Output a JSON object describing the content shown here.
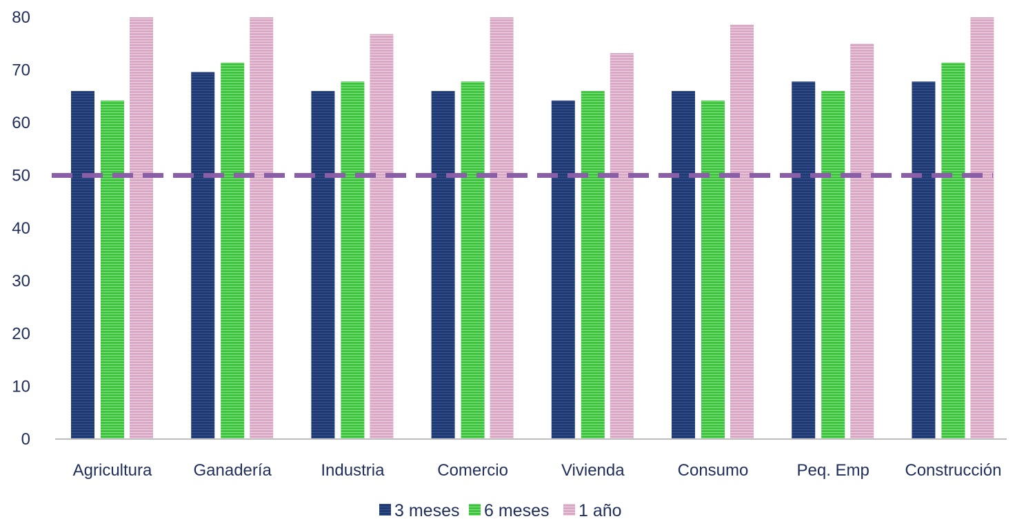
{
  "chart_data": {
    "type": "bar",
    "categories": [
      "Agricultura",
      "Ganadería",
      "Industria",
      "Comercio",
      "Vivienda",
      "Consumo",
      "Peq. Emp",
      "Construcción"
    ],
    "series": [
      {
        "name": "3 meses",
        "color": "#1f3a73",
        "values": [
          66,
          69.6,
          66,
          66,
          64.2,
          66,
          67.8,
          67.8
        ]
      },
      {
        "name": "6 meses",
        "color": "#3cc43c",
        "values": [
          64.2,
          71.4,
          67.8,
          67.8,
          66,
          64.2,
          66,
          71.4
        ]
      },
      {
        "name": "1 año",
        "color": "#d8a8c4",
        "values": [
          80,
          80,
          76.8,
          80,
          73.2,
          78.6,
          75,
          80
        ]
      }
    ],
    "reference_line": {
      "value": 50,
      "color": "#8a5fa8",
      "style": "dashed"
    },
    "ylim": [
      0,
      80
    ],
    "yticks": [
      0,
      10,
      20,
      30,
      40,
      50,
      60,
      70,
      80
    ],
    "legend_position": "bottom-center",
    "grid": false
  }
}
